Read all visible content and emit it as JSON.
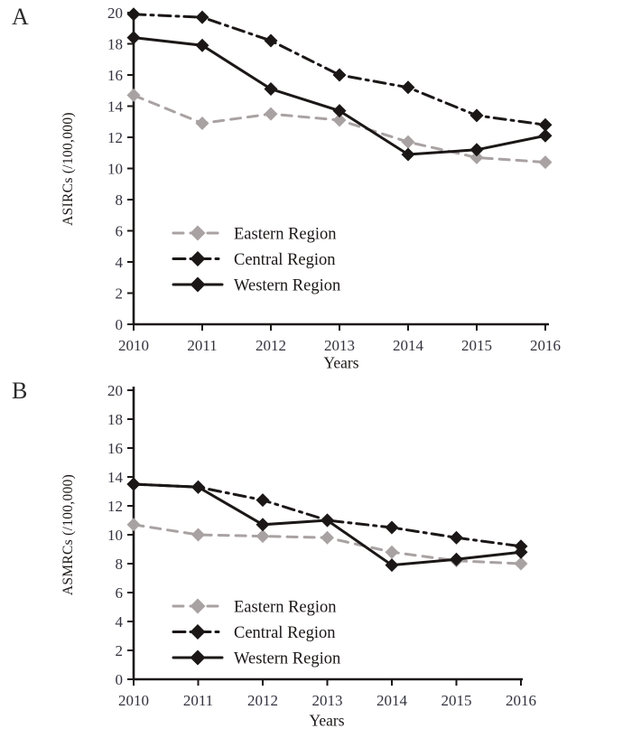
{
  "page": {
    "background": "#ffffff"
  },
  "colors": {
    "axis": "#1c1717",
    "black_series": "#1c1717",
    "gray_series": "#a9a2a2",
    "tick_text": "#32323e",
    "label_text": "#1c1717"
  },
  "panels": [
    {
      "label": "A",
      "ylabel": "ASIRCs (/100,000)",
      "xlabel": "Years"
    },
    {
      "label": "B",
      "ylabel": "ASMRCs (/100,000)",
      "xlabel": "Years"
    }
  ],
  "legend_labels": [
    "Eastern Region",
    "Central Region",
    "Western Region"
  ],
  "chart_data": [
    {
      "type": "line",
      "panel": "A",
      "title": "",
      "xlabel": "Years",
      "ylabel": "ASIRCs (/100,000)",
      "x": [
        2010,
        2011,
        2012,
        2013,
        2014,
        2015,
        2016
      ],
      "ylim": [
        0,
        20
      ],
      "ytick_step": 2,
      "grid": false,
      "legend_position": "inside lower-left",
      "series": [
        {
          "name": "Eastern Region",
          "color": "#a9a2a2",
          "line_style": "dashed",
          "marker": "diamond",
          "values": [
            14.7,
            12.9,
            13.5,
            13.1,
            11.7,
            10.7,
            10.4
          ]
        },
        {
          "name": "Central Region",
          "color": "#1c1717",
          "line_style": "dash-dot",
          "marker": "diamond",
          "values": [
            19.9,
            19.7,
            18.2,
            16.0,
            15.2,
            13.4,
            12.8
          ]
        },
        {
          "name": "Western Region",
          "color": "#1c1717",
          "line_style": "solid",
          "marker": "diamond",
          "values": [
            18.4,
            17.9,
            15.1,
            13.7,
            10.9,
            11.2,
            12.1
          ]
        }
      ]
    },
    {
      "type": "line",
      "panel": "B",
      "title": "",
      "xlabel": "Years",
      "ylabel": "ASMRCs (/100,000)",
      "x": [
        2010,
        2011,
        2012,
        2013,
        2014,
        2015,
        2016
      ],
      "ylim": [
        0,
        20
      ],
      "ytick_step": 2,
      "grid": false,
      "legend_position": "inside lower-left",
      "series": [
        {
          "name": "Eastern Region",
          "color": "#a9a2a2",
          "line_style": "dashed",
          "marker": "diamond",
          "values": [
            10.7,
            10.0,
            9.9,
            9.8,
            8.8,
            8.2,
            8.0
          ]
        },
        {
          "name": "Central Region",
          "color": "#1c1717",
          "line_style": "dash-dot",
          "marker": "diamond",
          "values": [
            13.5,
            13.3,
            12.4,
            11.0,
            10.5,
            9.8,
            9.2
          ]
        },
        {
          "name": "Western Region",
          "color": "#1c1717",
          "line_style": "solid",
          "marker": "diamond",
          "values": [
            13.5,
            13.3,
            10.7,
            11.0,
            7.9,
            8.3,
            8.8
          ]
        }
      ]
    }
  ]
}
